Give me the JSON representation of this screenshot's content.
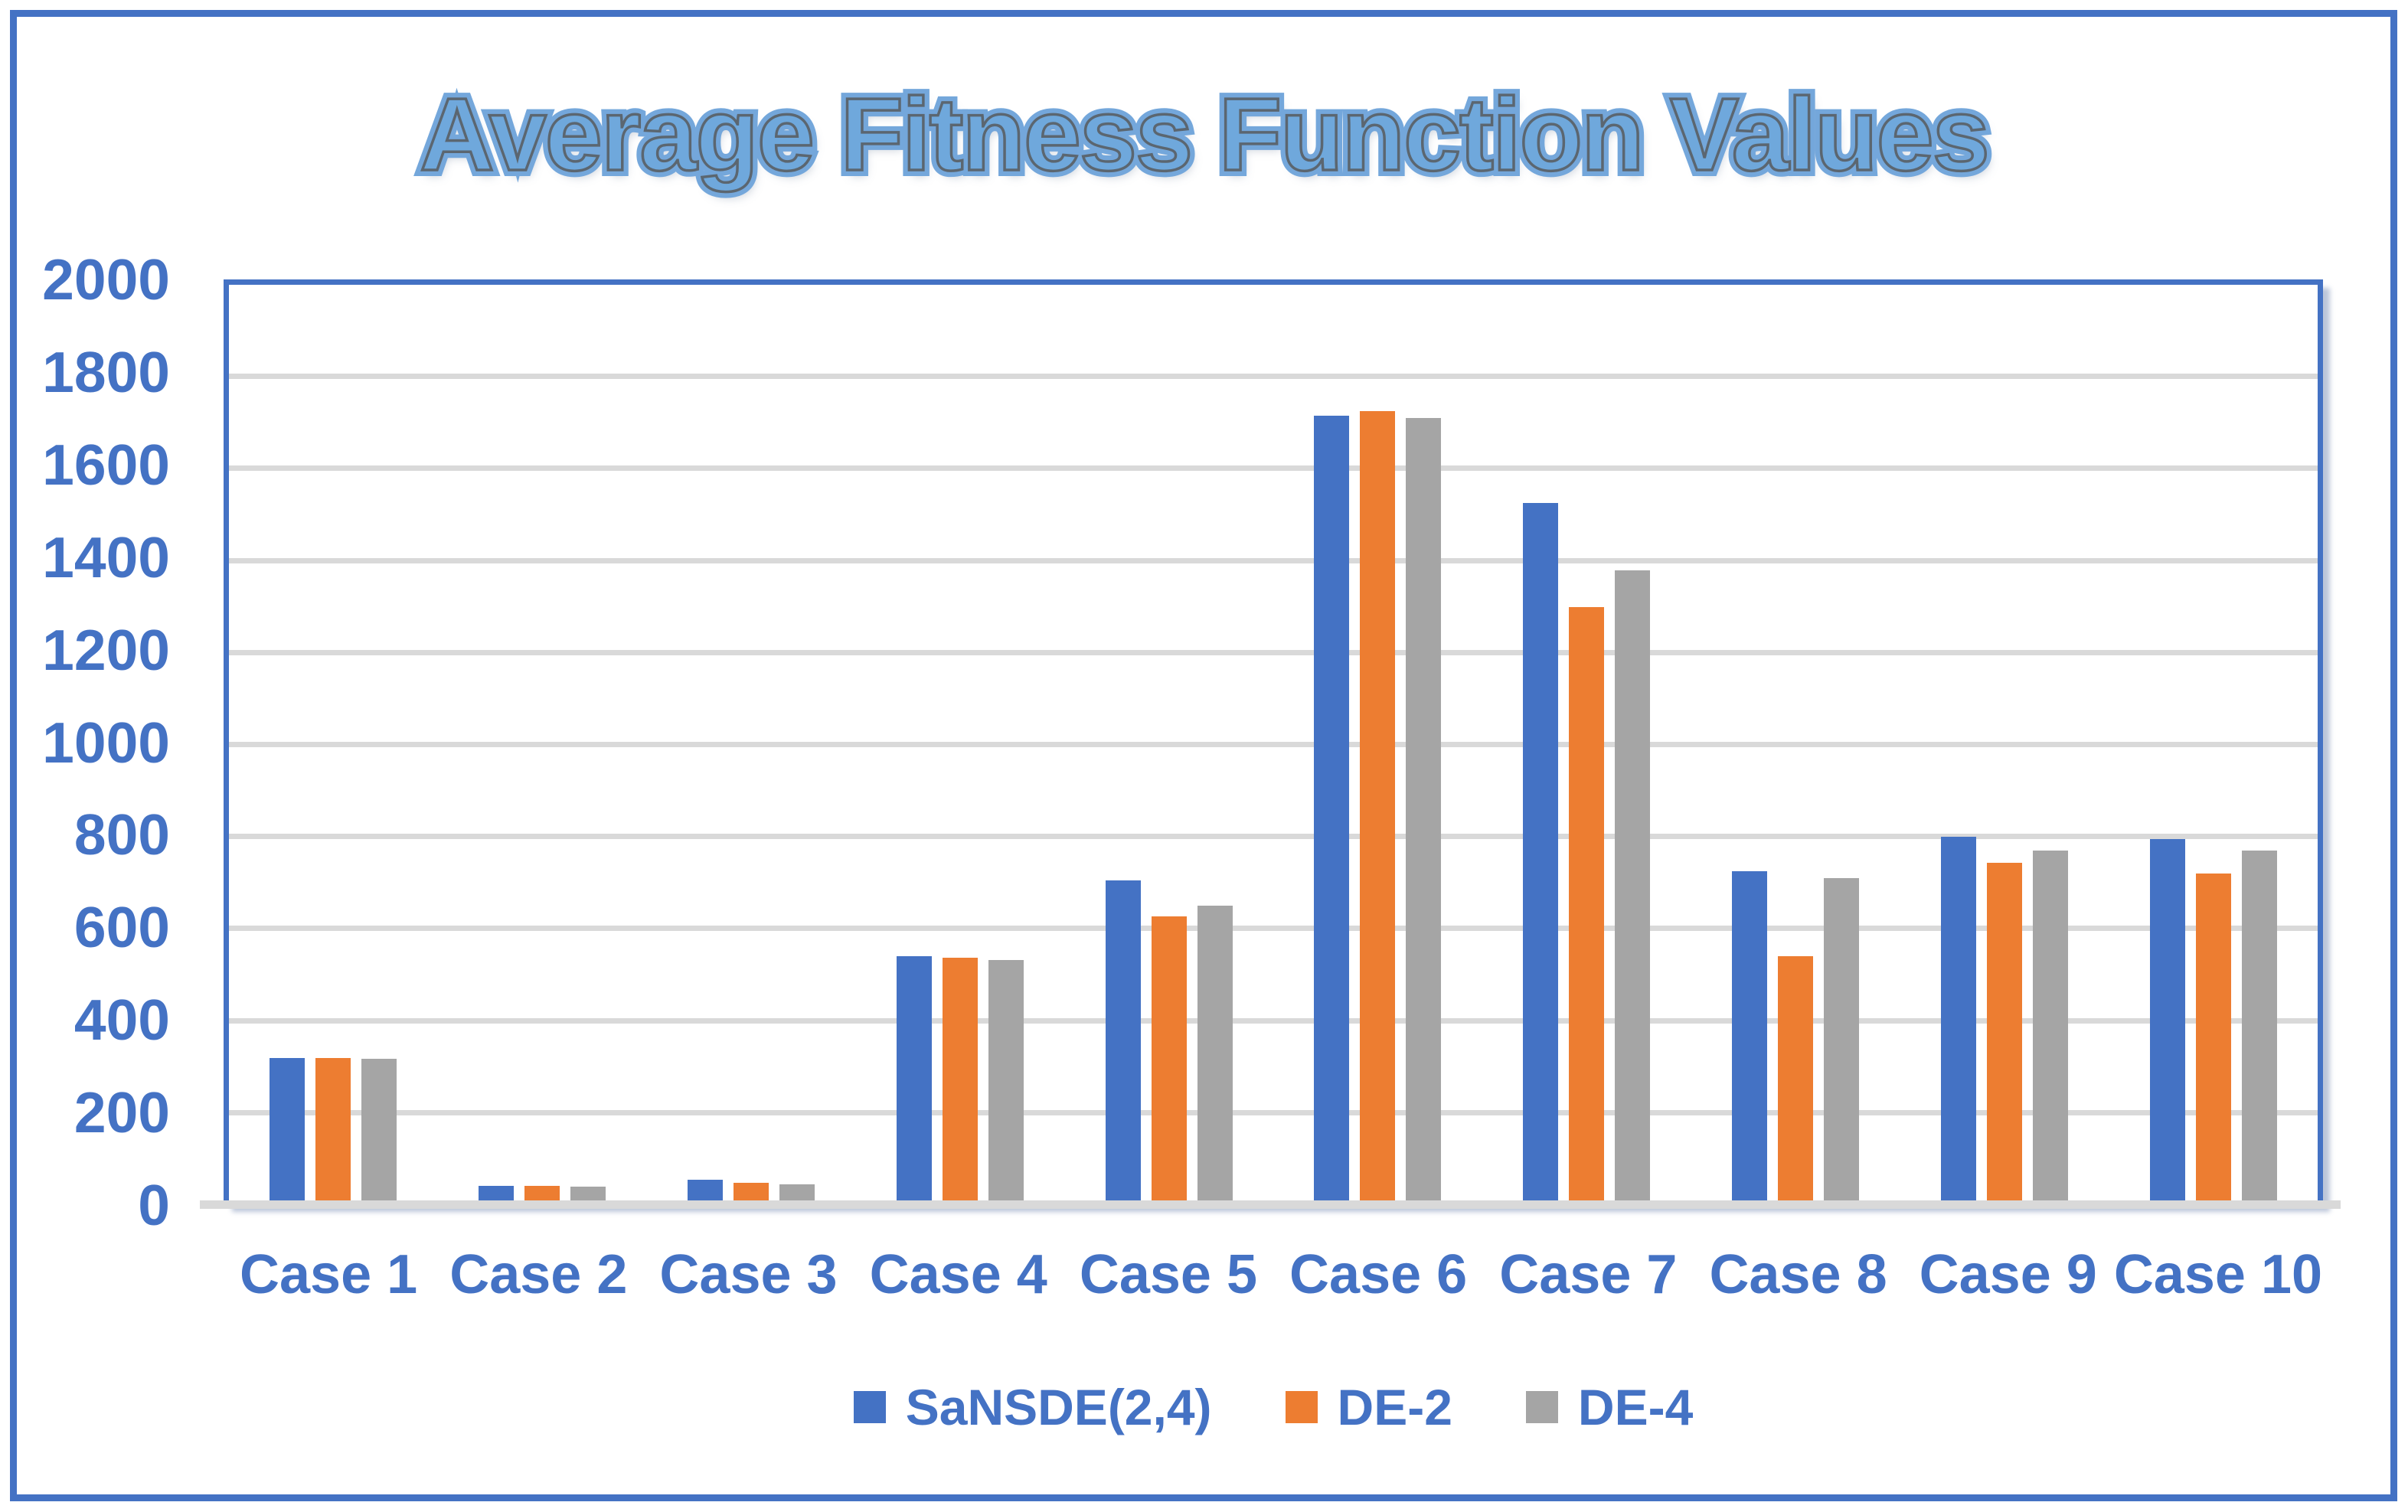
{
  "title": "Average Fitness Function Values",
  "colors": {
    "accent": "#4472C4",
    "series_blue": "#4472C4",
    "series_orange": "#ED7D31",
    "series_gray": "#A5A5A5",
    "gridline": "#D9D9D9",
    "label_text": "#4472C4",
    "title_fill": "#6FA8DC",
    "title_outline": "#5B6670"
  },
  "chart_data": {
    "type": "bar",
    "title": "Average Fitness Function Values",
    "categories": [
      "Case 1",
      "Case 2",
      "Case 3",
      "Case 4",
      "Case 5",
      "Case 6",
      "Case 7",
      "Case 8",
      "Case 9",
      "Case 10"
    ],
    "series": [
      {
        "name": "SaNSDE(2,4)",
        "color": "#4472C4",
        "values": [
          320,
          42,
          55,
          540,
          705,
          1715,
          1525,
          725,
          800,
          795
        ]
      },
      {
        "name": "DE-2",
        "color": "#ED7D31",
        "values": [
          320,
          41,
          48,
          538,
          628,
          1725,
          1300,
          540,
          743,
          720
        ]
      },
      {
        "name": "DE-4",
        "color": "#A5A5A5",
        "values": [
          318,
          40,
          45,
          532,
          650,
          1710,
          1380,
          710,
          770,
          770
        ]
      }
    ],
    "xlabel": "",
    "ylabel": "",
    "ylim": [
      0,
      2000
    ],
    "yticks": [
      0,
      200,
      400,
      600,
      800,
      1000,
      1200,
      1400,
      1600,
      1800,
      2000
    ],
    "grid": true,
    "legend_position": "bottom"
  }
}
